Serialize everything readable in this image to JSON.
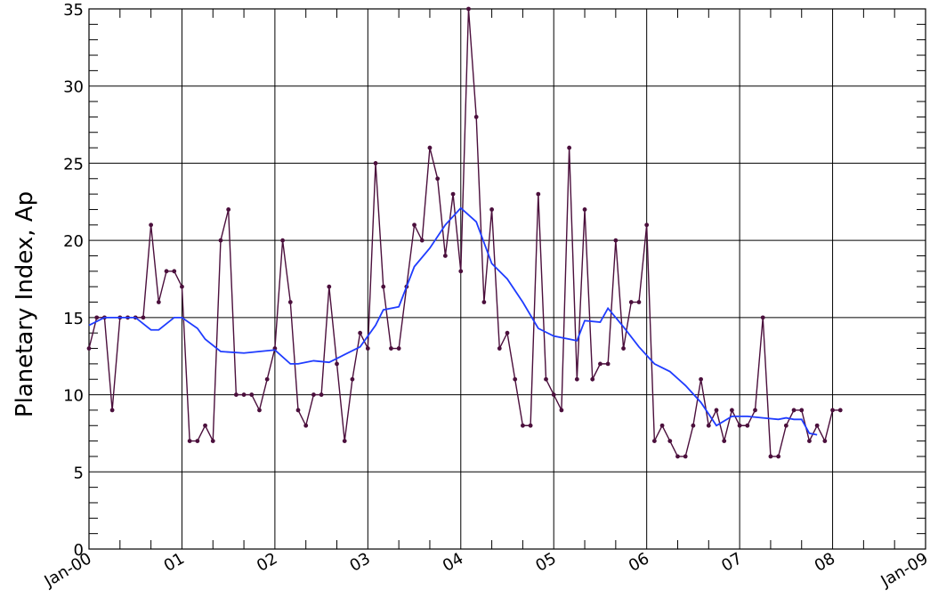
{
  "chart_data": {
    "type": "line",
    "ylabel": "Planetary Index, Ap",
    "xlabel": "",
    "title": "",
    "x_tick_labels": [
      "Jan-00",
      "01",
      "02",
      "03",
      "04",
      "05",
      "06",
      "07",
      "08",
      "Jan-09"
    ],
    "y_tick_labels": [
      "0",
      "5",
      "10",
      "15",
      "20",
      "25",
      "30",
      "35"
    ],
    "xlim": [
      0,
      108
    ],
    "ylim": [
      0,
      35
    ],
    "grid": true,
    "colors": {
      "monthly": "#4b0f3c",
      "smoothed": "#1f3cff"
    },
    "series": [
      {
        "marker": "dot",
        "x": [
          0,
          1,
          2,
          3,
          4,
          5,
          6,
          7,
          8,
          9,
          10,
          11,
          12,
          13,
          14,
          15,
          16,
          17,
          18,
          19,
          20,
          21,
          22,
          23,
          24,
          25,
          26,
          27,
          28,
          29,
          30,
          31,
          32,
          33,
          34,
          35,
          36,
          37,
          38,
          39,
          40,
          41,
          42,
          43,
          44,
          45,
          46,
          47,
          48,
          49,
          50,
          51,
          52,
          53,
          54,
          55,
          56,
          57,
          58,
          59,
          60,
          61,
          62,
          63,
          64,
          65,
          66,
          67,
          68,
          69,
          70,
          71,
          72,
          73,
          74,
          75,
          76,
          77,
          78,
          79,
          80,
          81,
          82,
          83,
          84,
          85,
          86,
          87,
          88,
          89,
          90,
          91,
          92,
          93,
          94,
          95,
          96,
          97
        ],
        "y": [
          13,
          15,
          15,
          9,
          15,
          15,
          15,
          15,
          21,
          16,
          18,
          18,
          17,
          7,
          7,
          8,
          7,
          20,
          22,
          10,
          10,
          10,
          9,
          11,
          13,
          20,
          16,
          9,
          8,
          10,
          10,
          17,
          12,
          7,
          11,
          14,
          13,
          25,
          17,
          13,
          13,
          17,
          21,
          20,
          26,
          24,
          19,
          23,
          18,
          35,
          28,
          16,
          22,
          13,
          14,
          11,
          8,
          8,
          23,
          11,
          10,
          9,
          26,
          11,
          22,
          11,
          12,
          12,
          20,
          13,
          16,
          16,
          21,
          7,
          8,
          7,
          6,
          6,
          8,
          11,
          8,
          9,
          7,
          9,
          8,
          8,
          9,
          15,
          6,
          6,
          8,
          9,
          9,
          7,
          8,
          7,
          9,
          9
        ]
      },
      {
        "x": [
          0,
          2,
          4,
          6,
          8,
          9,
          11,
          12,
          14,
          15,
          17,
          20,
          22,
          24,
          26,
          27,
          29,
          31,
          33,
          35,
          37,
          38,
          40,
          42,
          44,
          46,
          48,
          50,
          52,
          54,
          56,
          58,
          60,
          61,
          63,
          64,
          66,
          67,
          69,
          71,
          73,
          75,
          77,
          79,
          81,
          83,
          85,
          87,
          89,
          90,
          91,
          92,
          93,
          94,
          95
        ],
        "y": [
          14.5,
          15,
          15,
          15,
          14.2,
          14.2,
          15,
          15,
          14.3,
          13.6,
          12.8,
          12.7,
          12.8,
          12.9,
          12,
          12,
          12.2,
          12.1,
          12.6,
          13.1,
          14.5,
          15.5,
          15.7,
          18.3,
          19.5,
          21,
          22.1,
          21.2,
          18.5,
          17.5,
          16,
          14.3,
          13.8,
          13.7,
          13.5,
          14.8,
          14.7,
          15.6,
          14.4,
          13.1,
          12,
          11.5,
          10.6,
          9.5,
          8,
          8.6,
          8.6,
          8.5,
          8.4,
          8.5,
          8.4,
          8.4,
          7.5,
          7.4,
          null
        ]
      }
    ]
  }
}
